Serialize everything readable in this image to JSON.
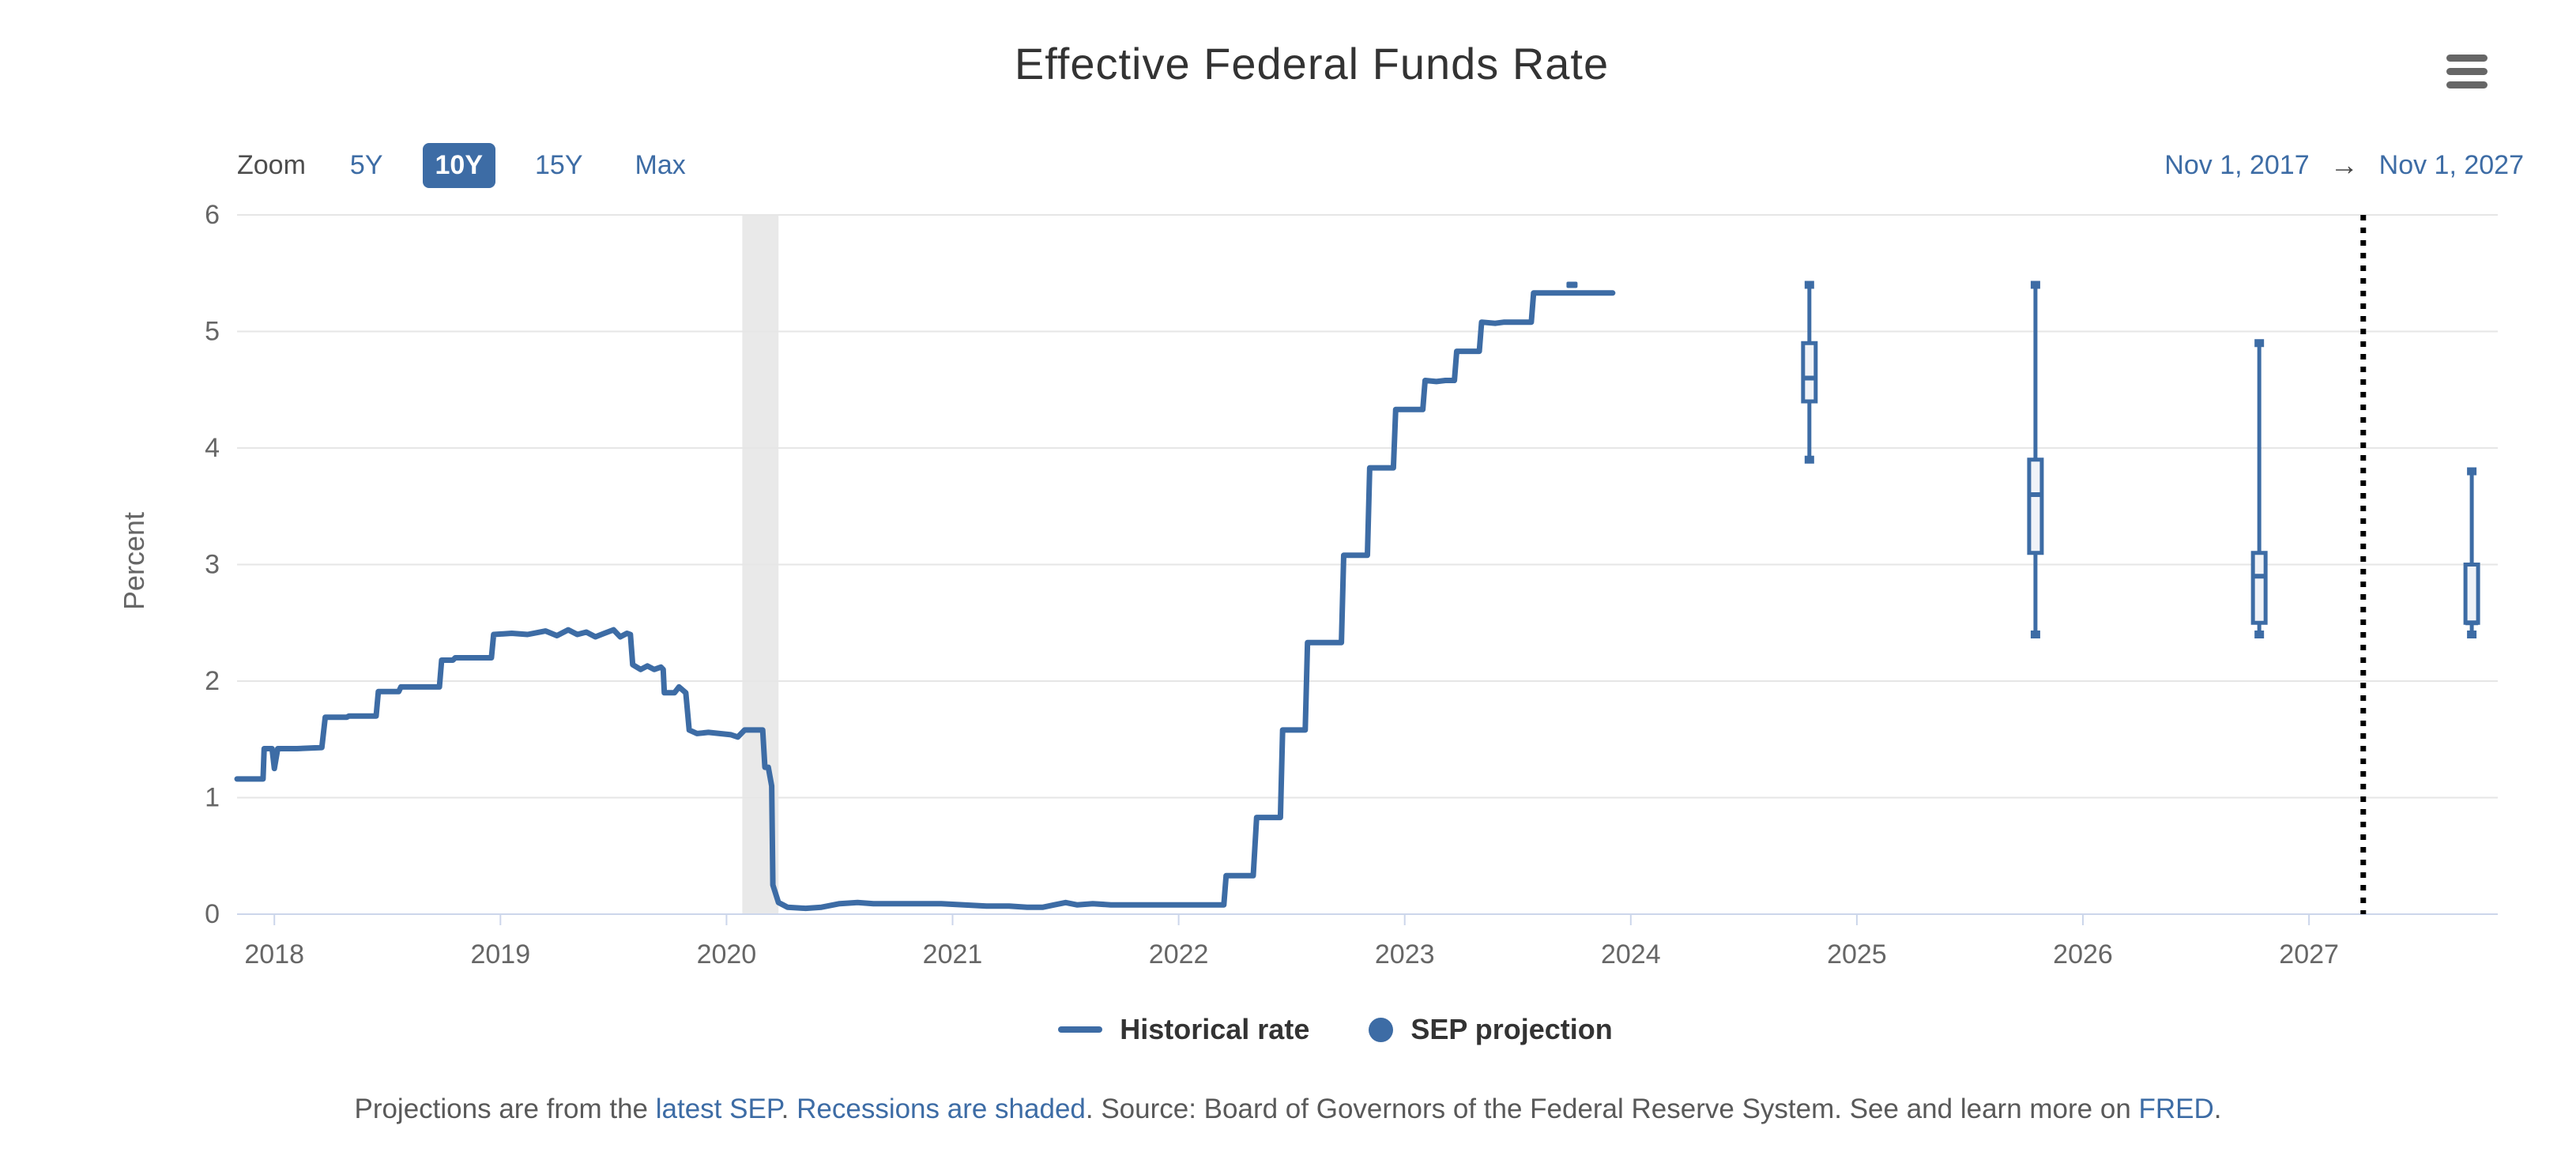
{
  "header": {
    "title": "Effective Federal Funds Rate",
    "menu_icon": "hamburger-icon"
  },
  "toolbar": {
    "zoom_label": "Zoom",
    "buttons": [
      {
        "label": "5Y",
        "selected": false
      },
      {
        "label": "10Y",
        "selected": true
      },
      {
        "label": "15Y",
        "selected": false
      },
      {
        "label": "Max",
        "selected": false
      }
    ],
    "range_from": "Nov 1, 2017",
    "range_separator": "→",
    "range_to": "Nov 1, 2027"
  },
  "legend": {
    "items": [
      {
        "label": "Historical rate",
        "marker": "line",
        "color": "#3d6ca5"
      },
      {
        "label": "SEP projection",
        "marker": "circle",
        "color": "#3d6ca5"
      }
    ]
  },
  "footer": {
    "segments": [
      {
        "text": "Projections are from the ",
        "link": false
      },
      {
        "text": "latest SEP",
        "link": true
      },
      {
        "text": ". ",
        "link": false
      },
      {
        "text": "Recessions are shaded",
        "link": true
      },
      {
        "text": ". Source: Board of Governors of the Federal Reserve System. See and learn more on ",
        "link": false
      },
      {
        "text": "FRED",
        "link": true
      },
      {
        "text": ".",
        "link": false
      }
    ]
  },
  "colors": {
    "accent_blue": "#3d6ca5",
    "box_fill": "#f0f3f8",
    "gridline": "#e6e6e6",
    "axis_line": "#ccd6eb",
    "axis_text": "#666666",
    "recession_band": "#e9e9e9",
    "divider": "#000000"
  },
  "chart_data": {
    "type": "line",
    "title": "Effective Federal Funds Rate",
    "xlabel": "",
    "ylabel": "Percent",
    "ylim": [
      0,
      6
    ],
    "yticks": [
      0,
      1,
      2,
      3,
      4,
      5,
      6
    ],
    "xticks": [
      2018,
      2019,
      2020,
      2021,
      2022,
      2023,
      2024,
      2025,
      2026,
      2027
    ],
    "x_range": [
      2017.835,
      2027.835
    ],
    "grid": true,
    "legend_position": "bottom",
    "recession_band": {
      "from": 2020.07,
      "to": 2020.23
    },
    "divider_line": {
      "x": 2027.24,
      "style": "dotted"
    },
    "series": [
      {
        "name": "Historical rate",
        "type": "line",
        "points": [
          [
            2017.835,
            1.16
          ],
          [
            2017.95,
            1.16
          ],
          [
            2017.955,
            1.42
          ],
          [
            2017.99,
            1.42
          ],
          [
            2018.0,
            1.25
          ],
          [
            2018.015,
            1.42
          ],
          [
            2018.1,
            1.42
          ],
          [
            2018.21,
            1.43
          ],
          [
            2018.225,
            1.69
          ],
          [
            2018.32,
            1.69
          ],
          [
            2018.33,
            1.7
          ],
          [
            2018.45,
            1.7
          ],
          [
            2018.46,
            1.91
          ],
          [
            2018.55,
            1.91
          ],
          [
            2018.56,
            1.95
          ],
          [
            2018.73,
            1.95
          ],
          [
            2018.74,
            2.18
          ],
          [
            2018.79,
            2.18
          ],
          [
            2018.8,
            2.2
          ],
          [
            2018.96,
            2.2
          ],
          [
            2018.97,
            2.4
          ],
          [
            2019.05,
            2.41
          ],
          [
            2019.12,
            2.4
          ],
          [
            2019.2,
            2.43
          ],
          [
            2019.25,
            2.39
          ],
          [
            2019.3,
            2.44
          ],
          [
            2019.34,
            2.4
          ],
          [
            2019.38,
            2.42
          ],
          [
            2019.42,
            2.38
          ],
          [
            2019.46,
            2.41
          ],
          [
            2019.5,
            2.44
          ],
          [
            2019.53,
            2.38
          ],
          [
            2019.56,
            2.41
          ],
          [
            2019.575,
            2.4
          ],
          [
            2019.585,
            2.14
          ],
          [
            2019.62,
            2.1
          ],
          [
            2019.65,
            2.13
          ],
          [
            2019.68,
            2.1
          ],
          [
            2019.71,
            2.12
          ],
          [
            2019.72,
            2.1
          ],
          [
            2019.725,
            1.9
          ],
          [
            2019.77,
            1.9
          ],
          [
            2019.79,
            1.95
          ],
          [
            2019.82,
            1.9
          ],
          [
            2019.835,
            1.58
          ],
          [
            2019.87,
            1.55
          ],
          [
            2019.92,
            1.56
          ],
          [
            2019.97,
            1.55
          ],
          [
            2020.02,
            1.54
          ],
          [
            2020.05,
            1.52
          ],
          [
            2020.08,
            1.58
          ],
          [
            2020.16,
            1.58
          ],
          [
            2020.17,
            1.26
          ],
          [
            2020.185,
            1.26
          ],
          [
            2020.2,
            1.1
          ],
          [
            2020.205,
            0.25
          ],
          [
            2020.23,
            0.1
          ],
          [
            2020.27,
            0.06
          ],
          [
            2020.35,
            0.05
          ],
          [
            2020.42,
            0.06
          ],
          [
            2020.5,
            0.09
          ],
          [
            2020.58,
            0.1
          ],
          [
            2020.65,
            0.09
          ],
          [
            2020.75,
            0.09
          ],
          [
            2020.85,
            0.09
          ],
          [
            2020.95,
            0.09
          ],
          [
            2021.05,
            0.08
          ],
          [
            2021.15,
            0.07
          ],
          [
            2021.25,
            0.07
          ],
          [
            2021.33,
            0.06
          ],
          [
            2021.4,
            0.06
          ],
          [
            2021.45,
            0.08
          ],
          [
            2021.5,
            0.1
          ],
          [
            2021.55,
            0.08
          ],
          [
            2021.62,
            0.09
          ],
          [
            2021.7,
            0.08
          ],
          [
            2021.8,
            0.08
          ],
          [
            2021.9,
            0.08
          ],
          [
            2022.0,
            0.08
          ],
          [
            2022.1,
            0.08
          ],
          [
            2022.2,
            0.08
          ],
          [
            2022.21,
            0.33
          ],
          [
            2022.33,
            0.33
          ],
          [
            2022.345,
            0.83
          ],
          [
            2022.45,
            0.83
          ],
          [
            2022.46,
            1.58
          ],
          [
            2022.56,
            1.58
          ],
          [
            2022.57,
            2.33
          ],
          [
            2022.72,
            2.33
          ],
          [
            2022.73,
            3.08
          ],
          [
            2022.835,
            3.08
          ],
          [
            2022.845,
            3.83
          ],
          [
            2022.95,
            3.83
          ],
          [
            2022.96,
            4.33
          ],
          [
            2023.08,
            4.33
          ],
          [
            2023.09,
            4.58
          ],
          [
            2023.14,
            4.57
          ],
          [
            2023.18,
            4.58
          ],
          [
            2023.22,
            4.58
          ],
          [
            2023.23,
            4.83
          ],
          [
            2023.33,
            4.83
          ],
          [
            2023.34,
            5.08
          ],
          [
            2023.4,
            5.07
          ],
          [
            2023.44,
            5.08
          ],
          [
            2023.56,
            5.08
          ],
          [
            2023.57,
            5.33
          ],
          [
            2023.7,
            5.33
          ],
          [
            2023.8,
            5.33
          ],
          [
            2023.92,
            5.33
          ]
        ]
      }
    ],
    "sep_projections": {
      "name": "SEP projection",
      "boxes": [
        {
          "x": 2023.74,
          "median": 5.4,
          "dash_only": true
        },
        {
          "x": 2024.79,
          "low": 3.9,
          "q1": 4.4,
          "median": 4.6,
          "q3": 4.9,
          "high": 5.4
        },
        {
          "x": 2025.79,
          "low": 2.4,
          "q1": 3.1,
          "median": 3.6,
          "q3": 3.9,
          "high": 5.4
        },
        {
          "x": 2026.78,
          "low": 2.4,
          "q1": 2.5,
          "median": 2.9,
          "q3": 3.1,
          "high": 4.9
        },
        {
          "x": 2027.72,
          "low": 2.4,
          "q1": 2.5,
          "median": 2.5,
          "q3": 3.0,
          "high": 3.8
        }
      ]
    }
  }
}
